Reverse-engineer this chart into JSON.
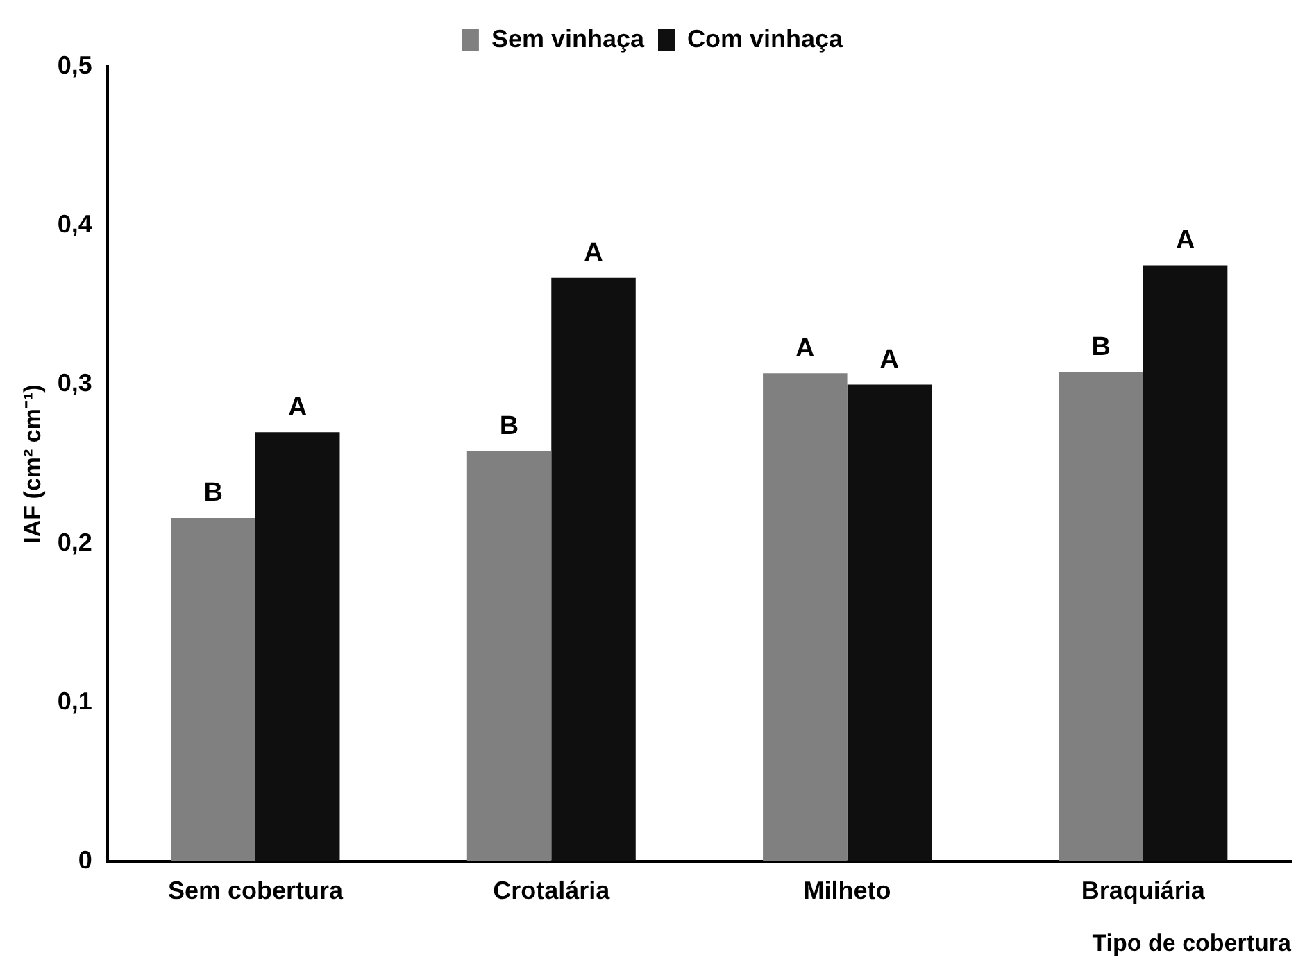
{
  "chart_data": {
    "type": "bar",
    "xlabel": "Tipo de cobertura",
    "ylabel": "IAF (cm² cm⁻¹)",
    "categories": [
      "Sem cobertura",
      "Crotalária",
      "Milheto",
      "Braquiária"
    ],
    "series": [
      {
        "name": "Sem vinhaça",
        "color": "#808080",
        "values": [
          0.216,
          0.258,
          0.307,
          0.308
        ],
        "value_labels": [
          "B",
          "B",
          "A",
          "B"
        ]
      },
      {
        "name": "Com vinhaça",
        "color": "#0f0f0f",
        "values": [
          0.27,
          0.367,
          0.3,
          0.375
        ],
        "value_labels": [
          "A",
          "A",
          "A",
          "A"
        ]
      }
    ],
    "ylim": [
      0,
      0.5
    ],
    "yticks": [
      0,
      {
        "value": 0.1,
        "label": "0,1"
      },
      {
        "value": 0.2,
        "label": "0,2"
      },
      {
        "value": 0.3,
        "label": "0,3"
      },
      {
        "value": 0.4,
        "label": "0,4"
      },
      {
        "value": 0.5,
        "label": "0,5"
      }
    ],
    "grid": false,
    "legend": "top"
  }
}
